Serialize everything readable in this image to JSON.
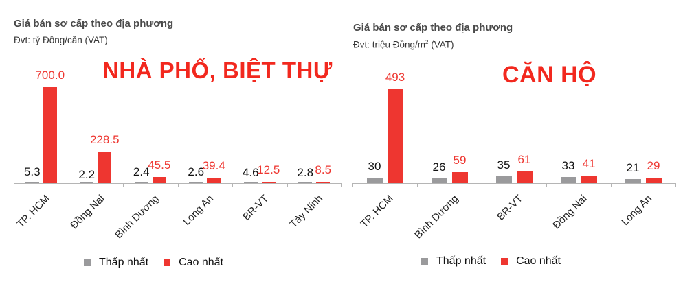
{
  "left": {
    "title": "Giá bán sơ cấp theo địa phương",
    "subtitle": "Đvt: tỷ Đồng/căn (VAT)",
    "big_label": "NHÀ PHỐ, BIỆT THỰ",
    "legend": {
      "low": "Thấp nhất",
      "high": "Cao nhất"
    }
  },
  "right": {
    "title": "Giá bán sơ cấp theo địa phương",
    "subtitle_main": "Đvt: triệu Đồng/m",
    "subtitle_sup": "2",
    "subtitle_tail": " (VAT)",
    "big_label": "CĂN HỘ",
    "legend": {
      "low": "Thấp nhất",
      "high": "Cao nhất"
    }
  },
  "colors": {
    "low": "#9a9a9c",
    "high": "#ee3630",
    "accent": "#f2281e"
  },
  "chart_data": [
    {
      "type": "bar",
      "title": "Giá bán sơ cấp theo địa phương",
      "subtitle": "Đvt: tỷ Đồng/căn (VAT)",
      "annotation": "NHÀ PHỐ, BIỆT THỰ",
      "categories": [
        "TP. HCM",
        "Đồng Nai",
        "Bình Dương",
        "Long An",
        "BR-VT",
        "Tây Ninh"
      ],
      "series": [
        {
          "name": "Thấp nhất",
          "values": [
            5.3,
            2.2,
            2.4,
            2.6,
            4.6,
            2.8
          ],
          "labels": [
            "5.3",
            "2.2",
            "2.4",
            "2.6",
            "4.6",
            "2.8"
          ]
        },
        {
          "name": "Cao nhất",
          "values": [
            700.0,
            228.5,
            45.5,
            39.4,
            12.5,
            8.5
          ],
          "labels": [
            "700.0",
            "228.5",
            "45.5",
            "39.4",
            "12.5",
            "8.5"
          ]
        }
      ],
      "xlabel": "",
      "ylabel": "",
      "ylim": [
        0,
        700
      ],
      "grid": false,
      "legend_position": "bottom"
    },
    {
      "type": "bar",
      "title": "Giá bán sơ cấp theo địa phương",
      "subtitle": "Đvt: triệu Đồng/m2 (VAT)",
      "annotation": "CĂN HỘ",
      "categories": [
        "TP. HCM",
        "Bình Dương",
        "BR-VT",
        "Đồng Nai",
        "Long An"
      ],
      "series": [
        {
          "name": "Thấp nhất",
          "values": [
            30,
            26,
            35,
            33,
            21
          ],
          "labels": [
            "30",
            "26",
            "35",
            "33",
            "21"
          ]
        },
        {
          "name": "Cao nhất",
          "values": [
            493,
            59,
            61,
            41,
            29
          ],
          "labels": [
            "493",
            "59",
            "61",
            "41",
            "29"
          ]
        }
      ],
      "xlabel": "",
      "ylabel": "",
      "ylim": [
        0,
        493
      ],
      "grid": false,
      "legend_position": "bottom"
    }
  ]
}
